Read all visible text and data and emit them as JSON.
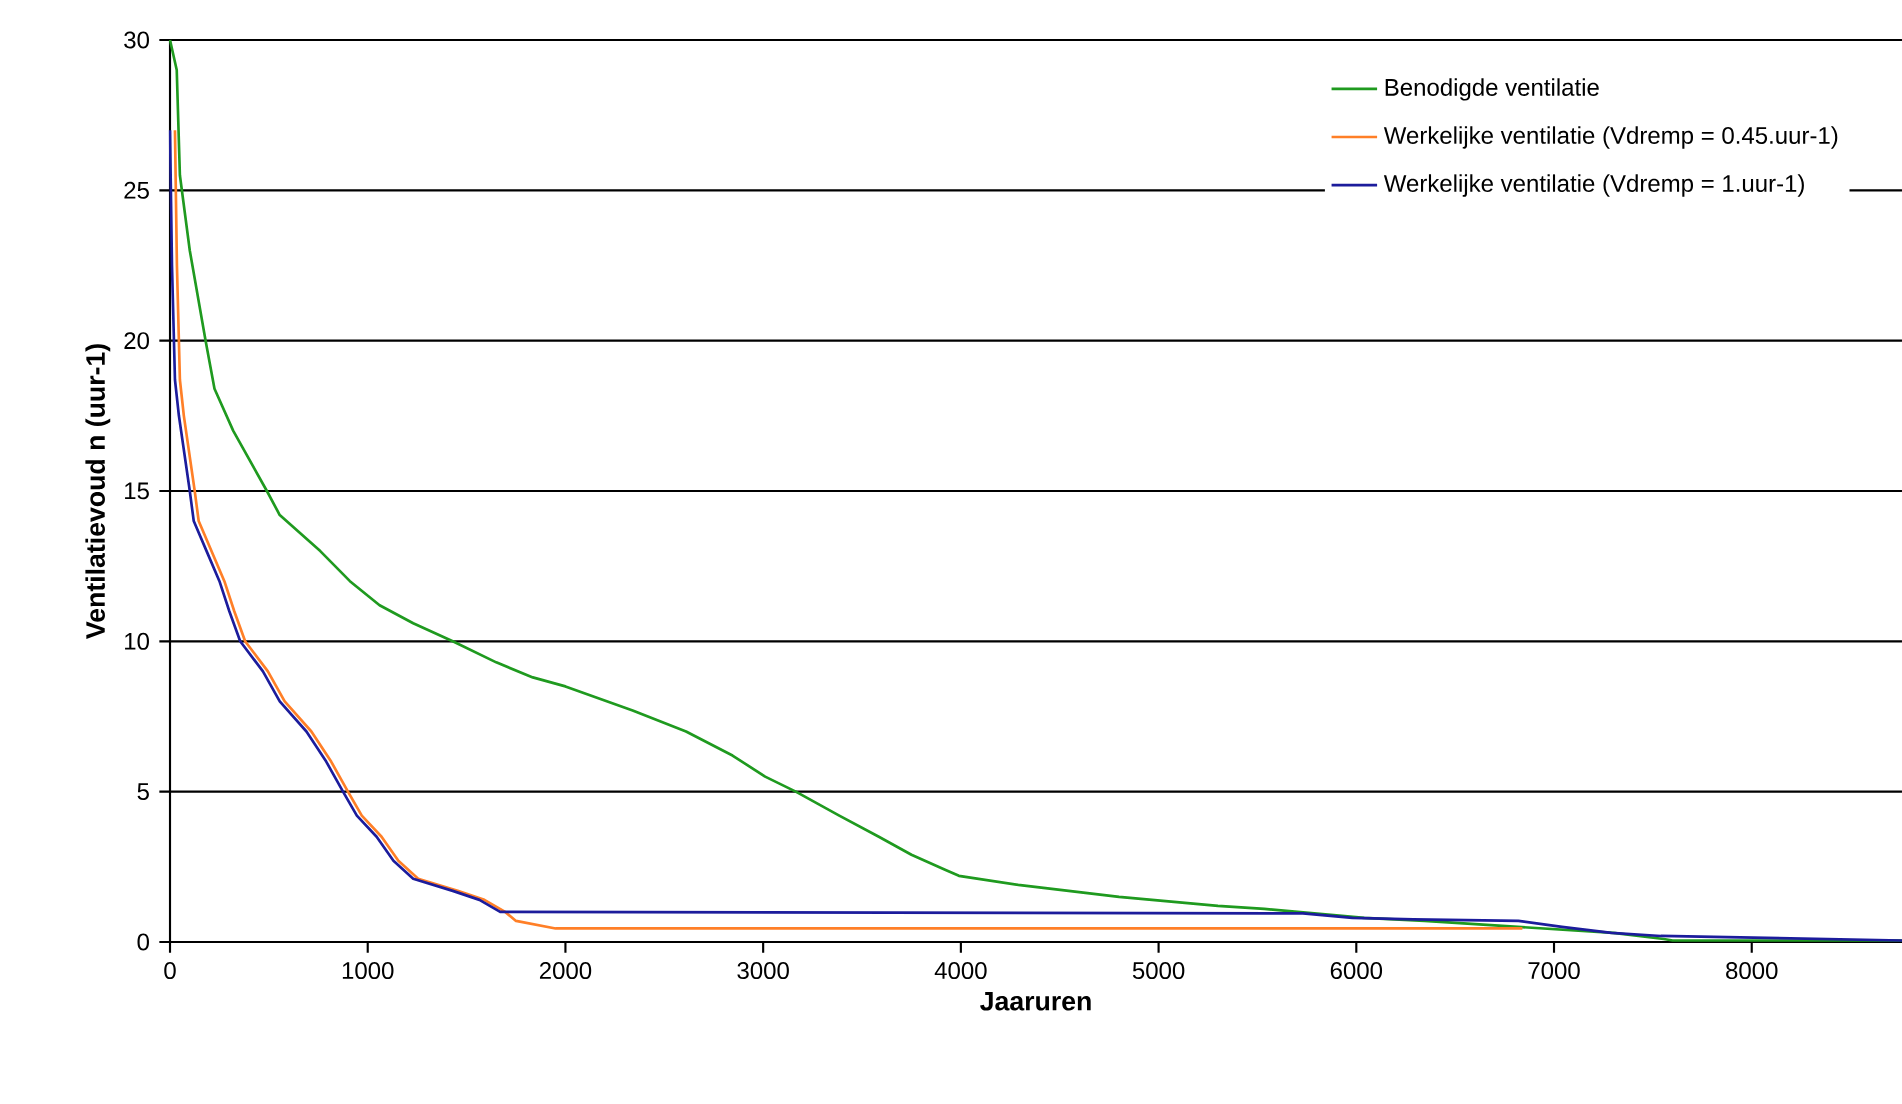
{
  "chart_data": {
    "type": "line",
    "xlabel": "Jaaruren",
    "ylabel": "Ventilatievoud n (uur-1)",
    "xlim": [
      0,
      8760
    ],
    "xticks": [
      0,
      1000,
      2000,
      3000,
      4000,
      5000,
      6000,
      7000,
      8000
    ],
    "ylim": [
      0,
      30
    ],
    "yticks": [
      0,
      5,
      10,
      15,
      20,
      25,
      30
    ],
    "grid": "y",
    "legend": "top right",
    "line_style": "solid",
    "marker": "none",
    "series": [
      {
        "name": "Benodigde ventilatie",
        "color": "#1f9a1f",
        "x": [
          0,
          34,
          50,
          100,
          180,
          225,
          320,
          490,
          555,
          760,
          910,
          1060,
          1230,
          1430,
          1650,
          1835,
          2000,
          2340,
          2610,
          2845,
          3010,
          3165,
          3385,
          3585,
          3750,
          3920,
          3990,
          4290,
          4800,
          5300,
          5535,
          6040,
          6345,
          7300,
          7555,
          7600,
          8760
        ],
        "values": [
          30,
          29,
          25.5,
          23,
          20,
          18.4,
          17,
          15,
          14.2,
          13,
          12,
          11.2,
          10.6,
          10,
          9.3,
          8.8,
          8.5,
          7.7,
          7,
          6.2,
          5.5,
          5,
          4.2,
          3.5,
          2.9,
          2.4,
          2.2,
          1.9,
          1.5,
          1.2,
          1.1,
          0.8,
          0.7,
          0.3,
          0.1,
          0.05,
          0.05
        ]
      },
      {
        "name": "Werkelijke ventilatie (Vdremp = 0.45.uur-1)",
        "color": "#ff7f27",
        "x": [
          25,
          35,
          50,
          70,
          125,
          145,
          210,
          275,
          325,
          380,
          495,
          580,
          715,
          815,
          900,
          970,
          1070,
          1155,
          1255,
          1455,
          1590,
          1695,
          1750,
          1950,
          6840
        ],
        "values": [
          27,
          22.5,
          18.7,
          17.5,
          15,
          14,
          13,
          12,
          11,
          10,
          9,
          8,
          7,
          6,
          5,
          4.2,
          3.5,
          2.7,
          2.1,
          1.7,
          1.4,
          1,
          0.7,
          0.45,
          0.45
        ]
      },
      {
        "name": "Werkelijke ventilatie (Vdremp = 1.uur-1)",
        "color": "#1c1c9c",
        "x": [
          0,
          10,
          25,
          45,
          100,
          120,
          185,
          250,
          300,
          355,
          470,
          555,
          690,
          790,
          875,
          945,
          1045,
          1130,
          1230,
          1430,
          1565,
          1670,
          5730,
          5980,
          6290,
          6820,
          7040,
          7290,
          7540,
          8760
        ],
        "values": [
          27,
          22.5,
          18.7,
          17.5,
          15,
          14,
          13,
          12,
          11,
          10,
          9,
          8,
          7,
          6,
          5,
          4.2,
          3.5,
          2.7,
          2.1,
          1.7,
          1.4,
          1,
          0.95,
          0.8,
          0.75,
          0.7,
          0.5,
          0.3,
          0.2,
          0.05
        ]
      }
    ]
  }
}
